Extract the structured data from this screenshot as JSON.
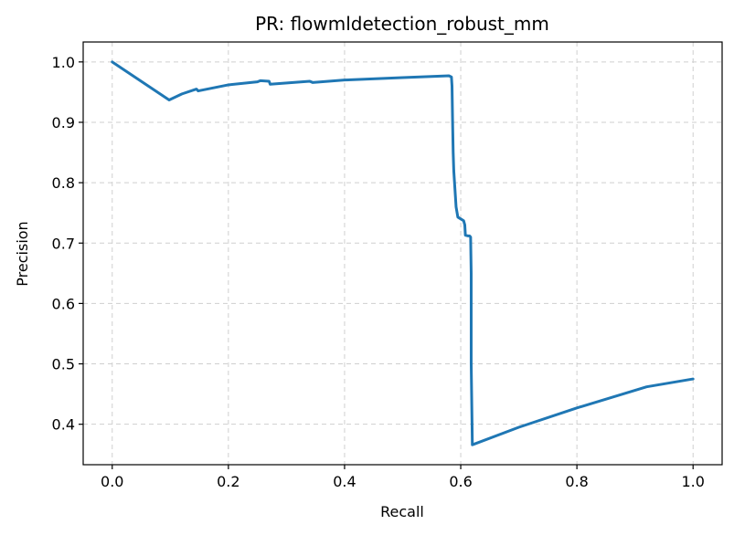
{
  "chart_data": {
    "type": "line",
    "title": "PR: flowmldetection_robust_mm",
    "xlabel": "Recall",
    "ylabel": "Precision",
    "xlim": [
      -0.05,
      1.05
    ],
    "ylim": [
      0.333,
      1.033
    ],
    "xticks": [
      0.0,
      0.2,
      0.4,
      0.6,
      0.8,
      1.0
    ],
    "xtick_labels": [
      "0.0",
      "0.2",
      "0.4",
      "0.6",
      "0.8",
      "1.0"
    ],
    "yticks": [
      0.4,
      0.5,
      0.6,
      0.7,
      0.8,
      0.9,
      1.0
    ],
    "ytick_labels": [
      "0.4",
      "0.5",
      "0.6",
      "0.7",
      "0.8",
      "0.9",
      "1.0"
    ],
    "grid": true,
    "series": [
      {
        "color": "#1f77b4",
        "x": [
          0.0,
          0.098,
          0.12,
          0.145,
          0.148,
          0.2,
          0.25,
          0.255,
          0.27,
          0.272,
          0.34,
          0.345,
          0.4,
          0.5,
          0.58,
          0.584,
          0.585,
          0.586,
          0.587,
          0.588,
          0.59,
          0.592,
          0.595,
          0.6,
          0.605,
          0.607,
          0.608,
          0.612,
          0.615,
          0.617,
          0.618,
          0.618,
          0.618,
          0.62,
          0.7,
          0.8,
          0.92,
          1.0
        ],
        "y": [
          1.0,
          0.937,
          0.947,
          0.955,
          0.952,
          0.962,
          0.967,
          0.969,
          0.968,
          0.963,
          0.968,
          0.966,
          0.97,
          0.974,
          0.977,
          0.975,
          0.96,
          0.9,
          0.85,
          0.82,
          0.79,
          0.76,
          0.743,
          0.74,
          0.737,
          0.73,
          0.713,
          0.712,
          0.712,
          0.71,
          0.65,
          0.64,
          0.5,
          0.366,
          0.395,
          0.427,
          0.462,
          0.475
        ]
      }
    ]
  }
}
